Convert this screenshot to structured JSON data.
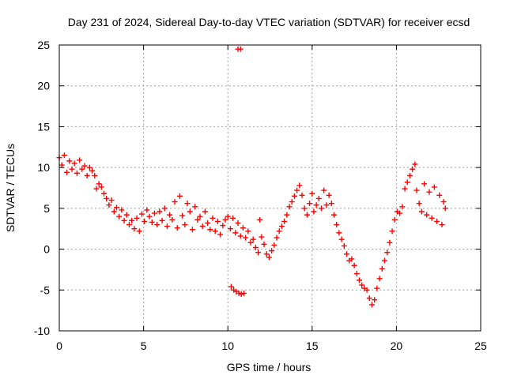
{
  "chart_data": {
    "type": "scatter",
    "title": "Day 231 of 2024, Sidereal Day-to-day VTEC variation (SDTVAR) for receiver ecsd",
    "xlabel": "GPS time / hours",
    "ylabel": "SDTVAR / TECUs",
    "xlim": [
      0,
      25
    ],
    "ylim": [
      -10,
      25
    ],
    "xticks": [
      0,
      5,
      10,
      15,
      20,
      25
    ],
    "yticks": [
      -10,
      -5,
      0,
      5,
      10,
      15,
      20,
      25
    ],
    "grid": true,
    "marker": "+",
    "series": [
      {
        "name": "SDTVAR",
        "color": "#ff0000",
        "points": [
          [
            0.0,
            11.2
          ],
          [
            0.15,
            10.3
          ],
          [
            0.3,
            11.5
          ],
          [
            0.45,
            9.4
          ],
          [
            0.6,
            10.8
          ],
          [
            0.75,
            9.8
          ],
          [
            0.9,
            10.5
          ],
          [
            1.05,
            9.3
          ],
          [
            1.2,
            10.9
          ],
          [
            1.35,
            9.8
          ],
          [
            1.5,
            10.2
          ],
          [
            1.65,
            9.0
          ],
          [
            1.8,
            10.0
          ],
          [
            1.95,
            9.6
          ],
          [
            2.1,
            9.0
          ],
          [
            2.2,
            7.4
          ],
          [
            2.35,
            8.0
          ],
          [
            2.5,
            7.6
          ],
          [
            2.65,
            6.8
          ],
          [
            2.8,
            6.2
          ],
          [
            2.95,
            5.4
          ],
          [
            3.1,
            6.0
          ],
          [
            3.25,
            4.6
          ],
          [
            3.4,
            5.1
          ],
          [
            3.55,
            4.0
          ],
          [
            3.7,
            4.8
          ],
          [
            3.85,
            3.5
          ],
          [
            4.0,
            4.2
          ],
          [
            4.15,
            3.0
          ],
          [
            4.3,
            3.5
          ],
          [
            4.45,
            2.5
          ],
          [
            4.6,
            3.8
          ],
          [
            4.75,
            2.2
          ],
          [
            4.9,
            4.3
          ],
          [
            5.05,
            3.4
          ],
          [
            5.2,
            4.8
          ],
          [
            5.35,
            4.0
          ],
          [
            5.5,
            3.3
          ],
          [
            5.65,
            4.4
          ],
          [
            5.8,
            3.0
          ],
          [
            5.95,
            4.6
          ],
          [
            6.1,
            3.5
          ],
          [
            6.25,
            5.0
          ],
          [
            6.4,
            2.8
          ],
          [
            6.55,
            4.2
          ],
          [
            6.7,
            3.6
          ],
          [
            6.85,
            5.8
          ],
          [
            7.0,
            2.6
          ],
          [
            7.15,
            6.5
          ],
          [
            7.3,
            4.1
          ],
          [
            7.45,
            3.0
          ],
          [
            7.6,
            5.6
          ],
          [
            7.75,
            4.6
          ],
          [
            7.9,
            2.4
          ],
          [
            8.05,
            5.2
          ],
          [
            8.2,
            3.6
          ],
          [
            8.35,
            4.0
          ],
          [
            8.5,
            2.8
          ],
          [
            8.65,
            4.6
          ],
          [
            8.8,
            3.2
          ],
          [
            8.95,
            2.4
          ],
          [
            9.1,
            3.8
          ],
          [
            9.25,
            2.2
          ],
          [
            9.4,
            3.4
          ],
          [
            9.55,
            1.8
          ],
          [
            9.7,
            2.9
          ],
          [
            9.85,
            3.6
          ],
          [
            10.0,
            4.0
          ],
          [
            10.15,
            2.5
          ],
          [
            10.3,
            3.8
          ],
          [
            10.45,
            2.0
          ],
          [
            10.6,
            3.2
          ],
          [
            10.75,
            1.6
          ],
          [
            10.9,
            2.6
          ],
          [
            11.05,
            1.4
          ],
          [
            11.2,
            2.2
          ],
          [
            11.35,
            0.8
          ],
          [
            11.5,
            1.2
          ],
          [
            11.65,
            0.2
          ],
          [
            11.8,
            -0.4
          ],
          [
            11.9,
            3.6
          ],
          [
            12.0,
            1.5
          ],
          [
            12.15,
            0.6
          ],
          [
            12.3,
            -0.6
          ],
          [
            12.45,
            -1.0
          ],
          [
            12.6,
            -0.2
          ],
          [
            12.75,
            0.5
          ],
          [
            12.9,
            1.4
          ],
          [
            13.05,
            2.2
          ],
          [
            13.2,
            2.8
          ],
          [
            13.35,
            3.4
          ],
          [
            13.5,
            4.2
          ],
          [
            13.65,
            5.2
          ],
          [
            13.8,
            5.8
          ],
          [
            13.95,
            6.5
          ],
          [
            14.1,
            7.2
          ],
          [
            14.25,
            7.8
          ],
          [
            14.4,
            6.6
          ],
          [
            14.55,
            5.0
          ],
          [
            14.7,
            4.2
          ],
          [
            14.85,
            5.6
          ],
          [
            15.0,
            6.8
          ],
          [
            15.1,
            4.6
          ],
          [
            15.25,
            5.4
          ],
          [
            15.4,
            6.2
          ],
          [
            15.55,
            5.0
          ],
          [
            15.7,
            7.2
          ],
          [
            15.85,
            5.4
          ],
          [
            16.0,
            6.6
          ],
          [
            16.15,
            5.6
          ],
          [
            16.3,
            4.2
          ],
          [
            16.45,
            3.0
          ],
          [
            16.6,
            2.0
          ],
          [
            16.75,
            1.2
          ],
          [
            16.9,
            0.4
          ],
          [
            17.05,
            -0.6
          ],
          [
            17.2,
            -1.4
          ],
          [
            17.35,
            -1.2
          ],
          [
            17.5,
            -2.0
          ],
          [
            17.65,
            -3.0
          ],
          [
            17.8,
            -3.8
          ],
          [
            17.95,
            -4.4
          ],
          [
            18.1,
            -4.8
          ],
          [
            18.25,
            -5.0
          ],
          [
            18.4,
            -6.0
          ],
          [
            18.55,
            -6.8
          ],
          [
            18.7,
            -6.2
          ],
          [
            18.85,
            -4.8
          ],
          [
            19.0,
            -3.6
          ],
          [
            19.15,
            -2.4
          ],
          [
            19.3,
            -1.4
          ],
          [
            19.45,
            -0.4
          ],
          [
            19.6,
            0.8
          ],
          [
            19.75,
            2.2
          ],
          [
            19.9,
            3.6
          ],
          [
            20.05,
            4.6
          ],
          [
            20.2,
            4.4
          ],
          [
            20.35,
            5.2
          ],
          [
            20.5,
            7.4
          ],
          [
            20.65,
            8.2
          ],
          [
            20.8,
            9.0
          ],
          [
            20.95,
            9.8
          ],
          [
            21.1,
            10.4
          ],
          [
            21.2,
            7.2
          ],
          [
            21.35,
            5.6
          ],
          [
            21.5,
            4.6
          ],
          [
            21.65,
            8.0
          ],
          [
            21.8,
            4.2
          ],
          [
            21.95,
            7.0
          ],
          [
            22.1,
            3.8
          ],
          [
            22.25,
            7.6
          ],
          [
            22.4,
            3.4
          ],
          [
            22.55,
            6.6
          ],
          [
            22.7,
            3.0
          ],
          [
            22.8,
            5.8
          ],
          [
            22.9,
            5.0
          ],
          [
            10.2,
            -4.6
          ],
          [
            10.35,
            -5.0
          ],
          [
            10.5,
            -5.2
          ],
          [
            10.65,
            -5.4
          ],
          [
            10.8,
            -5.5
          ],
          [
            10.95,
            -5.4
          ],
          [
            10.6,
            24.5
          ],
          [
            10.75,
            24.5
          ]
        ]
      }
    ]
  }
}
